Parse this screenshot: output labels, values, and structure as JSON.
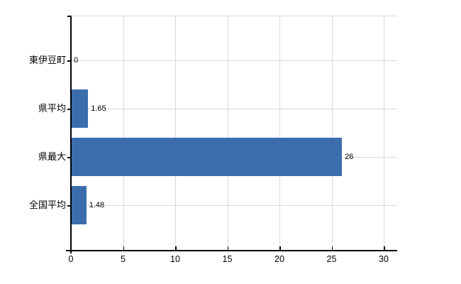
{
  "chart_data": {
    "type": "bar",
    "orientation": "horizontal",
    "title": "",
    "xlabel": "",
    "ylabel": "",
    "categories": [
      "東伊豆町",
      "県平均",
      "県最大",
      "全国平均"
    ],
    "values": [
      0,
      1.65,
      26,
      1.48
    ],
    "value_labels": [
      "0",
      "1.65",
      "26",
      "1.48"
    ],
    "xlim": [
      0,
      30
    ],
    "x_ticks": [
      0,
      5,
      10,
      15,
      20,
      25,
      30
    ],
    "grid": true,
    "legend": false,
    "bar_color": "#3b6dad",
    "grid_color": "#d9d9d9",
    "axis_color": "#000000",
    "text_color": "#000000",
    "background_color": "#ffffff"
  }
}
